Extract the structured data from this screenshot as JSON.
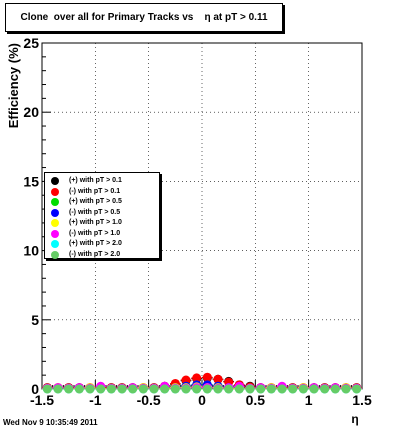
{
  "chart_data": {
    "type": "scatter",
    "title": "Clone  over all for Primary Tracks vs    η at pT > 0.11",
    "xlabel": "η",
    "ylabel": "Efficiency (%)",
    "xlim": [
      -1.5,
      1.5
    ],
    "ylim": [
      0,
      25
    ],
    "xticks": [
      "-1.5",
      "-1",
      "-0.5",
      "0",
      "0.5",
      "1",
      "1.5"
    ],
    "xtick_values": [
      -1.5,
      -1,
      -0.5,
      0,
      0.5,
      1,
      1.5
    ],
    "yticks": [
      "0",
      "5",
      "10",
      "15",
      "20",
      "25"
    ],
    "ytick_values": [
      0,
      5,
      10,
      15,
      20,
      25
    ],
    "grid": true,
    "legend_placement": "center-left",
    "series": [
      {
        "name": "(+) with pT > 0.1",
        "color": "#000000",
        "x": [
          -1.45,
          -1.35,
          -1.25,
          -1.15,
          -1.05,
          -0.95,
          -0.85,
          -0.75,
          -0.65,
          -0.55,
          -0.45,
          -0.35,
          -0.25,
          -0.15,
          -0.05,
          0.05,
          0.15,
          0.25,
          0.35,
          0.45,
          0.55,
          0.65,
          0.75,
          0.85,
          0.95,
          1.05,
          1.15,
          1.25,
          1.35,
          1.45
        ],
        "y": [
          0.1,
          0.1,
          0.1,
          0.1,
          0.1,
          0.1,
          0.1,
          0.1,
          0.1,
          0.1,
          0.1,
          0.2,
          0.35,
          0.6,
          0.75,
          0.8,
          0.7,
          0.55,
          0.3,
          0.2,
          0.1,
          0.1,
          0.1,
          0.1,
          0.1,
          0.1,
          0.1,
          0.1,
          0.1,
          0.1
        ]
      },
      {
        "name": "(-) with pT > 0.1",
        "color": "#ff0000",
        "x": [
          -1.45,
          -1.35,
          -1.25,
          -1.15,
          -1.05,
          -0.95,
          -0.85,
          -0.75,
          -0.65,
          -0.55,
          -0.45,
          -0.35,
          -0.25,
          -0.15,
          -0.05,
          0.05,
          0.15,
          0.25,
          0.35,
          0.45,
          0.55,
          0.65,
          0.75,
          0.85,
          0.95,
          1.05,
          1.15,
          1.25,
          1.35,
          1.45
        ],
        "y": [
          0.1,
          0.1,
          0.1,
          0.1,
          0.1,
          0.1,
          0.1,
          0.1,
          0.1,
          0.1,
          0.1,
          0.2,
          0.4,
          0.65,
          0.8,
          0.85,
          0.7,
          0.5,
          0.3,
          0.15,
          0.1,
          0.1,
          0.1,
          0.1,
          0.1,
          0.1,
          0.1,
          0.1,
          0.1,
          0.1
        ]
      },
      {
        "name": "(+) with pT > 0.5",
        "color": "#00dd00",
        "x": [
          -1.45,
          -1.35,
          -1.25,
          -1.15,
          -1.05,
          -0.95,
          -0.85,
          -0.75,
          -0.65,
          -0.55,
          -0.45,
          -0.35,
          -0.25,
          -0.15,
          -0.05,
          0.05,
          0.15,
          0.25,
          0.35,
          0.45,
          0.55,
          0.65,
          0.75,
          0.85,
          0.95,
          1.05,
          1.15,
          1.25,
          1.35,
          1.45
        ],
        "y": [
          0.05,
          0.05,
          0.05,
          0.05,
          0.05,
          0.05,
          0.05,
          0.05,
          0.05,
          0.05,
          0.05,
          0.05,
          0.1,
          0.2,
          0.3,
          0.3,
          0.2,
          0.1,
          0.05,
          0.05,
          0.05,
          0.05,
          0.05,
          0.05,
          0.05,
          0.05,
          0.05,
          0.05,
          0.05,
          0.05
        ]
      },
      {
        "name": "(-) with pT > 0.5",
        "color": "#0000ff",
        "x": [
          -1.45,
          -1.35,
          -1.25,
          -1.15,
          -1.05,
          -0.95,
          -0.85,
          -0.75,
          -0.65,
          -0.55,
          -0.45,
          -0.35,
          -0.25,
          -0.15,
          -0.05,
          0.05,
          0.15,
          0.25,
          0.35,
          0.45,
          0.55,
          0.65,
          0.75,
          0.85,
          0.95,
          1.05,
          1.15,
          1.25,
          1.35,
          1.45
        ],
        "y": [
          0.05,
          0.05,
          0.05,
          0.05,
          0.05,
          0.05,
          0.05,
          0.05,
          0.05,
          0.05,
          0.05,
          0.05,
          0.1,
          0.2,
          0.3,
          0.3,
          0.2,
          0.1,
          0.05,
          0.05,
          0.05,
          0.05,
          0.05,
          0.05,
          0.05,
          0.05,
          0.05,
          0.05,
          0.05,
          0.05
        ]
      },
      {
        "name": "(+) with pT > 1.0",
        "color": "#ffff00",
        "x": [
          -1.45,
          -1.35,
          -1.25,
          -1.15,
          -1.05,
          -0.95,
          -0.85,
          -0.75,
          -0.65,
          -0.55,
          -0.45,
          -0.35,
          -0.25,
          -0.15,
          -0.05,
          0.05,
          0.15,
          0.25,
          0.35,
          0.45,
          0.55,
          0.65,
          0.75,
          0.85,
          0.95,
          1.05,
          1.15,
          1.25,
          1.35,
          1.45
        ],
        "y": [
          0.05,
          0.1,
          0.05,
          0.05,
          0.1,
          0.05,
          0.05,
          0.05,
          0.05,
          0.1,
          0.05,
          0.05,
          0.1,
          0.1,
          0.15,
          0.1,
          0.1,
          0.05,
          0.05,
          0.05,
          0.05,
          0.1,
          0.05,
          0.05,
          0.1,
          0.05,
          0.05,
          0.05,
          0.1,
          0.05
        ]
      },
      {
        "name": "(-) with pT > 1.0",
        "color": "#ff00ff",
        "x": [
          -1.45,
          -1.35,
          -1.25,
          -1.15,
          -1.05,
          -0.95,
          -0.85,
          -0.75,
          -0.65,
          -0.55,
          -0.45,
          -0.35,
          -0.25,
          -0.15,
          -0.05,
          0.05,
          0.15,
          0.25,
          0.35,
          0.45,
          0.55,
          0.65,
          0.75,
          0.85,
          0.95,
          1.05,
          1.15,
          1.25,
          1.35,
          1.45
        ],
        "y": [
          0.05,
          0.1,
          0.05,
          0.1,
          0.05,
          0.2,
          0.05,
          0.05,
          0.1,
          0.05,
          0.05,
          0.2,
          0.05,
          0.05,
          0.1,
          0.1,
          0.05,
          0.1,
          0.2,
          0.05,
          0.1,
          0.05,
          0.2,
          0.05,
          0.05,
          0.1,
          0.05,
          0.1,
          0.05,
          0.05
        ]
      },
      {
        "name": "(+) with pT > 2.0",
        "color": "#00ffff",
        "x": [
          -1.45,
          -1.35,
          -1.25,
          -1.15,
          -1.05,
          -0.95,
          -0.85,
          -0.75,
          -0.65,
          -0.55,
          -0.45,
          -0.35,
          -0.25,
          -0.15,
          -0.05,
          0.05,
          0.15,
          0.25,
          0.35,
          0.45,
          0.55,
          0.65,
          0.75,
          0.85,
          0.95,
          1.05,
          1.15,
          1.25,
          1.35,
          1.45
        ],
        "y": [
          0,
          0,
          0,
          0,
          0,
          0,
          0,
          0,
          0,
          0,
          0,
          0,
          0,
          0,
          0,
          0,
          0,
          0,
          0,
          0,
          0,
          0,
          0,
          0,
          0,
          0,
          0,
          0,
          0,
          0
        ]
      },
      {
        "name": "(-) with pT > 2.0",
        "color": "#66cc66",
        "x": [
          -1.45,
          -1.35,
          -1.25,
          -1.15,
          -1.05,
          -0.95,
          -0.85,
          -0.75,
          -0.65,
          -0.55,
          -0.45,
          -0.35,
          -0.25,
          -0.15,
          -0.05,
          0.05,
          0.15,
          0.25,
          0.35,
          0.45,
          0.55,
          0.65,
          0.75,
          0.85,
          0.95,
          1.05,
          1.15,
          1.25,
          1.35,
          1.45
        ],
        "y": [
          0,
          0,
          0,
          0,
          0,
          0,
          0,
          0,
          0,
          0,
          0,
          0,
          0,
          0,
          0,
          0,
          0,
          0,
          0,
          0,
          0,
          0,
          0,
          0,
          0,
          0,
          0,
          0,
          0,
          0
        ]
      }
    ]
  },
  "footer": {
    "timestamp": "Wed Nov  9 10:35:49 2011"
  }
}
